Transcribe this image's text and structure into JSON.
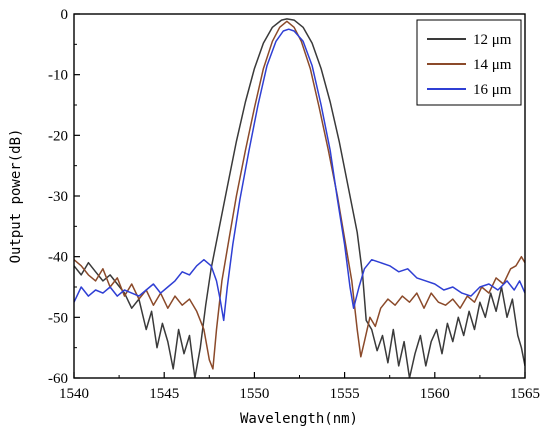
{
  "chart_data": {
    "type": "line",
    "xlabel": "Wavelength(nm)",
    "ylabel": "Output power(dB)",
    "xlim": [
      1540,
      1565
    ],
    "ylim": [
      -60,
      0
    ],
    "xticks": [
      "1540",
      "1545",
      "1550",
      "1555",
      "1560",
      "1565"
    ],
    "yticks": [
      "0",
      "-10",
      "-20",
      "-30",
      "-40",
      "-50",
      "-60"
    ],
    "legend_position": "top-right",
    "grid": false,
    "series": [
      {
        "name": "12 μm",
        "color": "#3a3a3a",
        "points": [
          [
            1540.0,
            -41.5
          ],
          [
            1540.4,
            -43.0
          ],
          [
            1540.8,
            -41.0
          ],
          [
            1541.2,
            -42.5
          ],
          [
            1541.6,
            -44.0
          ],
          [
            1542.0,
            -43.0
          ],
          [
            1542.4,
            -44.5
          ],
          [
            1542.8,
            -46.0
          ],
          [
            1543.2,
            -48.5
          ],
          [
            1543.6,
            -47.0
          ],
          [
            1544.0,
            -52.0
          ],
          [
            1544.3,
            -49.0
          ],
          [
            1544.6,
            -55.0
          ],
          [
            1544.9,
            -51.0
          ],
          [
            1545.2,
            -54.0
          ],
          [
            1545.5,
            -58.5
          ],
          [
            1545.8,
            -52.0
          ],
          [
            1546.1,
            -56.0
          ],
          [
            1546.4,
            -53.0
          ],
          [
            1546.7,
            -60.0
          ],
          [
            1547.0,
            -55.0
          ],
          [
            1547.3,
            -48.0
          ],
          [
            1547.6,
            -42.0
          ],
          [
            1548.0,
            -36.0
          ],
          [
            1548.5,
            -28.5
          ],
          [
            1549.0,
            -21.0
          ],
          [
            1549.5,
            -14.5
          ],
          [
            1550.0,
            -9.0
          ],
          [
            1550.5,
            -4.8
          ],
          [
            1551.0,
            -2.2
          ],
          [
            1551.5,
            -1.0
          ],
          [
            1551.8,
            -0.8
          ],
          [
            1552.2,
            -1.0
          ],
          [
            1552.7,
            -2.2
          ],
          [
            1553.2,
            -4.8
          ],
          [
            1553.7,
            -9.0
          ],
          [
            1554.2,
            -14.5
          ],
          [
            1554.7,
            -21.0
          ],
          [
            1555.2,
            -28.5
          ],
          [
            1555.7,
            -36.0
          ],
          [
            1556.0,
            -43.0
          ],
          [
            1556.2,
            -50.5
          ],
          [
            1556.5,
            -52.0
          ],
          [
            1556.8,
            -55.5
          ],
          [
            1557.1,
            -53.0
          ],
          [
            1557.4,
            -57.5
          ],
          [
            1557.7,
            -52.0
          ],
          [
            1558.0,
            -58.0
          ],
          [
            1558.3,
            -54.0
          ],
          [
            1558.6,
            -60.0
          ],
          [
            1558.9,
            -56.0
          ],
          [
            1559.2,
            -53.0
          ],
          [
            1559.5,
            -58.0
          ],
          [
            1559.8,
            -54.0
          ],
          [
            1560.1,
            -52.0
          ],
          [
            1560.4,
            -56.0
          ],
          [
            1560.7,
            -51.0
          ],
          [
            1561.0,
            -54.0
          ],
          [
            1561.3,
            -50.0
          ],
          [
            1561.6,
            -53.0
          ],
          [
            1561.9,
            -49.0
          ],
          [
            1562.2,
            -52.0
          ],
          [
            1562.5,
            -47.5
          ],
          [
            1562.8,
            -50.0
          ],
          [
            1563.1,
            -46.0
          ],
          [
            1563.4,
            -49.0
          ],
          [
            1563.7,
            -45.0
          ],
          [
            1564.0,
            -50.0
          ],
          [
            1564.3,
            -47.0
          ],
          [
            1564.6,
            -53.0
          ],
          [
            1564.8,
            -55.0
          ],
          [
            1565.0,
            -58.0
          ]
        ]
      },
      {
        "name": "14 μm",
        "color": "#8b4a2a",
        "points": [
          [
            1540.0,
            -40.5
          ],
          [
            1540.4,
            -41.5
          ],
          [
            1540.8,
            -43.0
          ],
          [
            1541.2,
            -44.0
          ],
          [
            1541.6,
            -42.0
          ],
          [
            1542.0,
            -45.0
          ],
          [
            1542.4,
            -43.5
          ],
          [
            1542.8,
            -46.5
          ],
          [
            1543.2,
            -44.5
          ],
          [
            1543.6,
            -47.0
          ],
          [
            1544.0,
            -45.5
          ],
          [
            1544.4,
            -48.0
          ],
          [
            1544.8,
            -46.0
          ],
          [
            1545.2,
            -48.5
          ],
          [
            1545.6,
            -46.5
          ],
          [
            1546.0,
            -48.0
          ],
          [
            1546.4,
            -47.0
          ],
          [
            1546.8,
            -49.0
          ],
          [
            1547.2,
            -52.0
          ],
          [
            1547.5,
            -57.0
          ],
          [
            1547.7,
            -58.5
          ],
          [
            1547.9,
            -52.0
          ],
          [
            1548.2,
            -44.0
          ],
          [
            1548.6,
            -37.0
          ],
          [
            1549.0,
            -30.0
          ],
          [
            1549.5,
            -22.5
          ],
          [
            1550.0,
            -15.5
          ],
          [
            1550.5,
            -9.0
          ],
          [
            1551.0,
            -4.5
          ],
          [
            1551.4,
            -2.2
          ],
          [
            1551.8,
            -1.2
          ],
          [
            1552.2,
            -2.2
          ],
          [
            1552.6,
            -4.5
          ],
          [
            1553.1,
            -9.0
          ],
          [
            1553.6,
            -15.5
          ],
          [
            1554.1,
            -22.5
          ],
          [
            1554.6,
            -30.0
          ],
          [
            1555.0,
            -37.0
          ],
          [
            1555.4,
            -44.0
          ],
          [
            1555.7,
            -52.0
          ],
          [
            1555.9,
            -56.5
          ],
          [
            1556.1,
            -54.0
          ],
          [
            1556.4,
            -50.0
          ],
          [
            1556.7,
            -51.5
          ],
          [
            1557.0,
            -48.5
          ],
          [
            1557.4,
            -47.0
          ],
          [
            1557.8,
            -48.0
          ],
          [
            1558.2,
            -46.5
          ],
          [
            1558.6,
            -47.5
          ],
          [
            1559.0,
            -46.0
          ],
          [
            1559.4,
            -48.5
          ],
          [
            1559.8,
            -46.0
          ],
          [
            1560.2,
            -47.5
          ],
          [
            1560.6,
            -48.0
          ],
          [
            1561.0,
            -47.0
          ],
          [
            1561.4,
            -48.5
          ],
          [
            1561.8,
            -46.5
          ],
          [
            1562.2,
            -47.5
          ],
          [
            1562.6,
            -45.0
          ],
          [
            1563.0,
            -46.0
          ],
          [
            1563.4,
            -43.5
          ],
          [
            1563.8,
            -44.5
          ],
          [
            1564.2,
            -42.0
          ],
          [
            1564.5,
            -41.5
          ],
          [
            1564.8,
            -40.0
          ],
          [
            1565.0,
            -41.0
          ]
        ]
      },
      {
        "name": "16 μm",
        "color": "#2f3fd4",
        "points": [
          [
            1540.0,
            -47.5
          ],
          [
            1540.4,
            -45.0
          ],
          [
            1540.8,
            -46.5
          ],
          [
            1541.2,
            -45.5
          ],
          [
            1541.6,
            -46.0
          ],
          [
            1542.0,
            -45.0
          ],
          [
            1542.4,
            -46.5
          ],
          [
            1542.8,
            -45.5
          ],
          [
            1543.2,
            -46.0
          ],
          [
            1543.6,
            -46.5
          ],
          [
            1544.0,
            -45.5
          ],
          [
            1544.4,
            -44.5
          ],
          [
            1544.8,
            -46.0
          ],
          [
            1545.2,
            -45.0
          ],
          [
            1545.6,
            -44.0
          ],
          [
            1546.0,
            -42.5
          ],
          [
            1546.4,
            -43.0
          ],
          [
            1546.8,
            -41.5
          ],
          [
            1547.2,
            -40.5
          ],
          [
            1547.6,
            -41.5
          ],
          [
            1547.9,
            -44.0
          ],
          [
            1548.1,
            -47.0
          ],
          [
            1548.3,
            -50.5
          ],
          [
            1548.5,
            -45.0
          ],
          [
            1548.8,
            -38.0
          ],
          [
            1549.2,
            -30.5
          ],
          [
            1549.7,
            -22.5
          ],
          [
            1550.2,
            -15.0
          ],
          [
            1550.7,
            -8.5
          ],
          [
            1551.2,
            -4.5
          ],
          [
            1551.6,
            -2.8
          ],
          [
            1551.9,
            -2.5
          ],
          [
            1552.2,
            -2.8
          ],
          [
            1552.7,
            -4.5
          ],
          [
            1553.2,
            -8.5
          ],
          [
            1553.7,
            -15.0
          ],
          [
            1554.2,
            -22.5
          ],
          [
            1554.6,
            -30.5
          ],
          [
            1555.0,
            -38.0
          ],
          [
            1555.3,
            -45.0
          ],
          [
            1555.5,
            -48.5
          ],
          [
            1555.8,
            -45.0
          ],
          [
            1556.1,
            -42.0
          ],
          [
            1556.5,
            -40.5
          ],
          [
            1557.0,
            -41.0
          ],
          [
            1557.5,
            -41.5
          ],
          [
            1558.0,
            -42.5
          ],
          [
            1558.5,
            -42.0
          ],
          [
            1559.0,
            -43.5
          ],
          [
            1559.5,
            -44.0
          ],
          [
            1560.0,
            -44.5
          ],
          [
            1560.5,
            -45.5
          ],
          [
            1561.0,
            -45.0
          ],
          [
            1561.5,
            -46.0
          ],
          [
            1562.0,
            -46.5
          ],
          [
            1562.5,
            -45.0
          ],
          [
            1563.0,
            -44.5
          ],
          [
            1563.5,
            -45.5
          ],
          [
            1564.0,
            -44.0
          ],
          [
            1564.4,
            -45.5
          ],
          [
            1564.7,
            -44.0
          ],
          [
            1565.0,
            -46.0
          ]
        ]
      }
    ]
  }
}
